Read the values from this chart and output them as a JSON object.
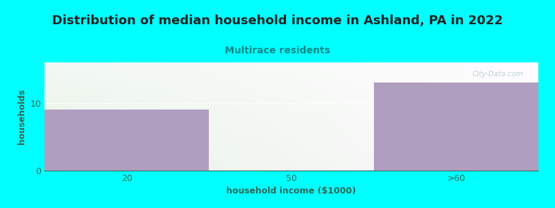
{
  "title": "Distribution of median household income in Ashland, PA in 2022",
  "subtitle": "Multirace residents",
  "xlabel": "household income ($1000)",
  "ylabel": "households",
  "categories": [
    "20",
    "50",
    ">60"
  ],
  "values": [
    9,
    0,
    13
  ],
  "bar_color": "#b09ec0",
  "background_color": "#00ffff",
  "title_fontsize": 13,
  "subtitle_fontsize": 10,
  "axis_label_fontsize": 9,
  "tick_fontsize": 9,
  "title_color": "#222222",
  "subtitle_color": "#008888",
  "axis_label_color": "#336655",
  "tick_color": "#336655",
  "ylim": [
    0,
    16
  ],
  "yticks": [
    0,
    10
  ],
  "watermark": "City-Data.com",
  "watermark_color": "#aacccc",
  "grid_color": "#dddddd",
  "plot_bg_left": "#e2f5e0",
  "plot_bg_right": "#f8ffff"
}
